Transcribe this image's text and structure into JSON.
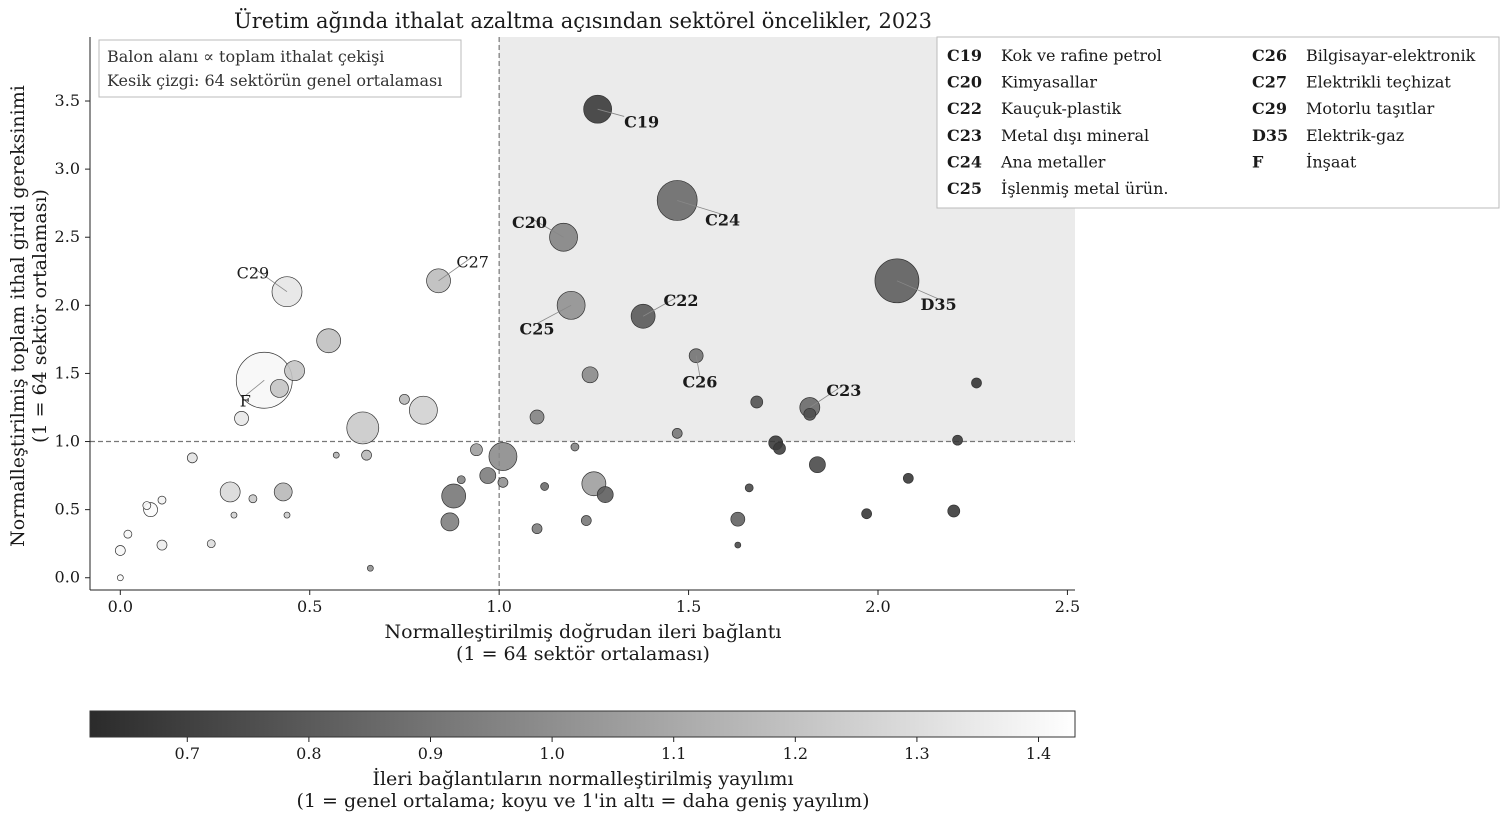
{
  "chart_data": {
    "type": "scatter",
    "title": "Üretim ağında ithalat azaltma açısından sektörel öncelikler, 2023",
    "xlabel": "Normalleştirilmiş doğrudan ileri bağlantı",
    "xlabel2": "(1 = 64 sektör ortalaması)",
    "ylabel": "Normalleştirilmiş toplam ithal girdi gereksinimi",
    "ylabel2": "(1 = 64 sektör ortalaması)",
    "xlim": [
      -0.08,
      2.52
    ],
    "ylim": [
      -0.09,
      3.97
    ],
    "xticks": [
      0,
      0.5,
      1.0,
      1.5,
      2.0,
      2.5
    ],
    "xtick_labels": [
      "0.0",
      "0.5",
      "1.0",
      "1.5",
      "2.0",
      "2.5"
    ],
    "yticks": [
      0,
      0.5,
      1.0,
      1.5,
      2.0,
      2.5,
      3.0,
      3.5
    ],
    "ytick_labels": [
      "0.0",
      "0.5",
      "1.0",
      "1.5",
      "2.0",
      "2.5",
      "3.0",
      "3.5"
    ],
    "reference_lines": {
      "x": 1.0,
      "y": 1.0
    },
    "highlight_region": "x ≥ 1 ve y ≥ 1",
    "notes": [
      "Balon alanı ∝ toplam ithalat çekişi",
      "Kesik çizgi: 64 sektörün genel ortalaması"
    ],
    "legend": [
      {
        "code": "C19",
        "name": "Kok ve rafine petrol"
      },
      {
        "code": "C20",
        "name": "Kimyasallar"
      },
      {
        "code": "C22",
        "name": "Kauçuk-plastik"
      },
      {
        "code": "C23",
        "name": "Metal dışı mineral"
      },
      {
        "code": "C24",
        "name": "Ana metaller"
      },
      {
        "code": "C25",
        "name": "İşlenmiş metal ürün."
      },
      {
        "code": "C26",
        "name": "Bilgisayar-elektronik"
      },
      {
        "code": "C27",
        "name": "Elektrikli teçhizat"
      },
      {
        "code": "C29",
        "name": "Motorlu taşıtlar"
      },
      {
        "code": "D35",
        "name": "Elektrik-gaz"
      },
      {
        "code": "F",
        "name": "İnşaat"
      }
    ],
    "legend_placement": "top-right",
    "colorbar": {
      "label": "İleri bağlantıların normalleştirilmiş yayılımı",
      "label2": "(1 = genel ortalama; koyu ve 1'in altı = daha geniş yayılım)",
      "min": 0.62,
      "max": 1.43,
      "ticks": [
        0.7,
        0.8,
        0.9,
        1.0,
        1.1,
        1.2,
        1.3,
        1.4
      ],
      "tick_labels": [
        "0.7",
        "0.8",
        "0.9",
        "1.0",
        "1.1",
        "1.2",
        "1.3",
        "1.4"
      ],
      "colors": [
        "#2b2b2b",
        "#ffffff"
      ]
    },
    "points": [
      {
        "x": 0.0,
        "y": 0.0,
        "r": 3,
        "c": 1.42
      },
      {
        "x": 0.0,
        "y": 0.2,
        "r": 5,
        "c": 1.4
      },
      {
        "x": 0.02,
        "y": 0.32,
        "r": 4,
        "c": 1.4
      },
      {
        "x": 0.07,
        "y": 0.53,
        "r": 4,
        "c": 1.4
      },
      {
        "x": 0.08,
        "y": 0.5,
        "r": 7,
        "c": 1.42
      },
      {
        "x": 0.11,
        "y": 0.57,
        "r": 4,
        "c": 1.38
      },
      {
        "x": 0.11,
        "y": 0.24,
        "r": 5,
        "c": 1.36
      },
      {
        "x": 0.19,
        "y": 0.88,
        "r": 5,
        "c": 1.32
      },
      {
        "x": 0.24,
        "y": 0.25,
        "r": 4,
        "c": 1.3
      },
      {
        "x": 0.29,
        "y": 0.63,
        "r": 10,
        "c": 1.28
      },
      {
        "x": 0.3,
        "y": 0.46,
        "r": 3,
        "c": 1.25
      },
      {
        "x": 0.32,
        "y": 1.17,
        "r": 7,
        "c": 1.34
      },
      {
        "x": 0.35,
        "y": 0.58,
        "r": 4,
        "c": 1.22
      },
      {
        "x": 0.38,
        "y": 1.45,
        "r": 28,
        "c": 1.4
      },
      {
        "x": 0.42,
        "y": 1.39,
        "r": 9,
        "c": 1.2
      },
      {
        "x": 0.43,
        "y": 0.63,
        "r": 9,
        "c": 1.15
      },
      {
        "x": 0.44,
        "y": 2.1,
        "r": 15,
        "c": 1.33
      },
      {
        "x": 0.44,
        "y": 0.46,
        "r": 3,
        "c": 1.22
      },
      {
        "x": 0.46,
        "y": 1.52,
        "r": 10,
        "c": 1.2
      },
      {
        "x": 0.55,
        "y": 1.74,
        "r": 12,
        "c": 1.18
      },
      {
        "x": 0.57,
        "y": 0.9,
        "r": 3,
        "c": 1.12
      },
      {
        "x": 0.64,
        "y": 1.1,
        "r": 16,
        "c": 1.22
      },
      {
        "x": 0.65,
        "y": 0.9,
        "r": 5,
        "c": 1.15
      },
      {
        "x": 0.66,
        "y": 0.07,
        "r": 3,
        "c": 1.0
      },
      {
        "x": 0.75,
        "y": 1.31,
        "r": 5,
        "c": 1.15
      },
      {
        "x": 0.8,
        "y": 1.23,
        "r": 14,
        "c": 1.25
      },
      {
        "x": 0.84,
        "y": 2.18,
        "r": 12,
        "c": 1.17
      },
      {
        "x": 0.87,
        "y": 0.41,
        "r": 9,
        "c": 0.93
      },
      {
        "x": 0.88,
        "y": 0.6,
        "r": 12,
        "c": 0.9
      },
      {
        "x": 0.9,
        "y": 0.72,
        "r": 4,
        "c": 0.95
      },
      {
        "x": 0.94,
        "y": 0.94,
        "r": 6,
        "c": 1.05
      },
      {
        "x": 0.97,
        "y": 0.75,
        "r": 8,
        "c": 0.92
      },
      {
        "x": 1.01,
        "y": 0.89,
        "r": 14,
        "c": 0.98
      },
      {
        "x": 1.01,
        "y": 0.7,
        "r": 5,
        "c": 1.0
      },
      {
        "x": 1.1,
        "y": 1.18,
        "r": 7,
        "c": 0.95
      },
      {
        "x": 1.1,
        "y": 0.36,
        "r": 5,
        "c": 0.92
      },
      {
        "x": 1.12,
        "y": 0.67,
        "r": 4,
        "c": 0.85
      },
      {
        "x": 1.17,
        "y": 2.5,
        "r": 14,
        "c": 0.95
      },
      {
        "x": 1.19,
        "y": 2.0,
        "r": 14,
        "c": 1.0
      },
      {
        "x": 1.2,
        "y": 0.96,
        "r": 4,
        "c": 0.95
      },
      {
        "x": 1.23,
        "y": 0.42,
        "r": 5,
        "c": 0.9
      },
      {
        "x": 1.24,
        "y": 1.49,
        "r": 8,
        "c": 0.97
      },
      {
        "x": 1.25,
        "y": 0.69,
        "r": 12,
        "c": 1.05
      },
      {
        "x": 1.26,
        "y": 3.44,
        "r": 14,
        "c": 0.66
      },
      {
        "x": 1.28,
        "y": 0.61,
        "r": 8,
        "c": 0.8
      },
      {
        "x": 1.38,
        "y": 1.92,
        "r": 12,
        "c": 0.78
      },
      {
        "x": 1.47,
        "y": 2.77,
        "r": 20,
        "c": 0.85
      },
      {
        "x": 1.47,
        "y": 1.06,
        "r": 5,
        "c": 0.9
      },
      {
        "x": 1.52,
        "y": 1.63,
        "r": 7,
        "c": 0.88
      },
      {
        "x": 1.63,
        "y": 0.43,
        "r": 7,
        "c": 0.82
      },
      {
        "x": 1.63,
        "y": 0.24,
        "r": 3,
        "c": 0.72
      },
      {
        "x": 1.66,
        "y": 0.66,
        "r": 4,
        "c": 0.72
      },
      {
        "x": 1.68,
        "y": 1.29,
        "r": 6,
        "c": 0.75
      },
      {
        "x": 1.73,
        "y": 0.99,
        "r": 7,
        "c": 0.66
      },
      {
        "x": 1.74,
        "y": 0.95,
        "r": 6,
        "c": 0.68
      },
      {
        "x": 1.82,
        "y": 1.25,
        "r": 10,
        "c": 0.85
      },
      {
        "x": 1.82,
        "y": 1.2,
        "r": 6,
        "c": 0.75
      },
      {
        "x": 1.84,
        "y": 0.83,
        "r": 8,
        "c": 0.72
      },
      {
        "x": 1.97,
        "y": 0.47,
        "r": 5,
        "c": 0.65
      },
      {
        "x": 2.05,
        "y": 2.18,
        "r": 22,
        "c": 0.8
      },
      {
        "x": 2.08,
        "y": 0.73,
        "r": 5,
        "c": 0.65
      },
      {
        "x": 2.2,
        "y": 0.49,
        "r": 6,
        "c": 0.66
      },
      {
        "x": 2.21,
        "y": 1.01,
        "r": 5,
        "c": 0.66
      },
      {
        "x": 2.26,
        "y": 1.43,
        "r": 5,
        "c": 0.64
      }
    ],
    "labels": [
      {
        "code": "C19",
        "x": 1.26,
        "y": 3.44,
        "lx": 1.33,
        "ly": 3.35,
        "bold": true,
        "anchor": "start"
      },
      {
        "code": "C20",
        "x": 1.17,
        "y": 2.5,
        "lx": 1.08,
        "ly": 2.61,
        "bold": true,
        "anchor": "middle"
      },
      {
        "code": "C24",
        "x": 1.47,
        "y": 2.77,
        "lx": 1.59,
        "ly": 2.63,
        "bold": true,
        "anchor": "middle"
      },
      {
        "code": "D35",
        "x": 2.05,
        "y": 2.18,
        "lx": 2.16,
        "ly": 2.01,
        "bold": true,
        "anchor": "middle"
      },
      {
        "code": "C22",
        "x": 1.38,
        "y": 1.92,
        "lx": 1.48,
        "ly": 2.04,
        "bold": true,
        "anchor": "middle"
      },
      {
        "code": "C25",
        "x": 1.19,
        "y": 2.0,
        "lx": 1.1,
        "ly": 1.83,
        "bold": true,
        "anchor": "middle"
      },
      {
        "code": "C26",
        "x": 1.52,
        "y": 1.63,
        "lx": 1.53,
        "ly": 1.44,
        "bold": true,
        "anchor": "middle"
      },
      {
        "code": "C23",
        "x": 1.82,
        "y": 1.25,
        "lx": 1.91,
        "ly": 1.38,
        "bold": true,
        "anchor": "middle"
      },
      {
        "code": "C29",
        "x": 0.44,
        "y": 2.1,
        "lx": 0.35,
        "ly": 2.24,
        "bold": false,
        "anchor": "middle"
      },
      {
        "code": "C27",
        "x": 0.84,
        "y": 2.18,
        "lx": 0.93,
        "ly": 2.32,
        "bold": false,
        "anchor": "middle"
      },
      {
        "code": "F",
        "x": 0.38,
        "y": 1.45,
        "lx": 0.33,
        "ly": 1.3,
        "bold": false,
        "anchor": "middle"
      }
    ]
  }
}
